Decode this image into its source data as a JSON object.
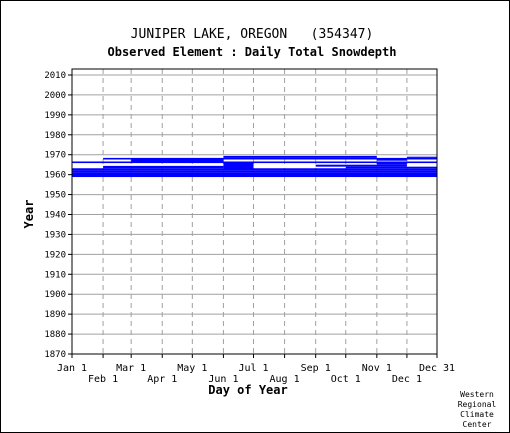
{
  "chart_data": {
    "type": "heatmap",
    "title": "JUNIPER LAKE, OREGON   (354347)",
    "subtitle": "Observed Element : Daily Total Snowdepth",
    "xlabel": "Day of Year",
    "ylabel": "Year",
    "ylim": [
      1870,
      2010
    ],
    "xlim_days": [
      1,
      365
    ],
    "x_ticks": [
      {
        "label": "Jan 1",
        "day": 1,
        "row": "top"
      },
      {
        "label": "Feb 1",
        "day": 32,
        "row": "bottom"
      },
      {
        "label": "Mar 1",
        "day": 60,
        "row": "top"
      },
      {
        "label": "Apr 1",
        "day": 91,
        "row": "bottom"
      },
      {
        "label": "May 1",
        "day": 121,
        "row": "top"
      },
      {
        "label": "Jun 1",
        "day": 152,
        "row": "bottom"
      },
      {
        "label": "Jul 1",
        "day": 182,
        "row": "top"
      },
      {
        "label": "Aug 1",
        "day": 213,
        "row": "bottom"
      },
      {
        "label": "Sep 1",
        "day": 244,
        "row": "top"
      },
      {
        "label": "Oct 1",
        "day": 274,
        "row": "bottom"
      },
      {
        "label": "Nov 1",
        "day": 305,
        "row": "top"
      },
      {
        "label": "Dec 1",
        "day": 335,
        "row": "bottom"
      },
      {
        "label": "Dec 31",
        "day": 365,
        "row": "top"
      }
    ],
    "y_ticks": [
      1870,
      1880,
      1890,
      1900,
      1910,
      1920,
      1930,
      1940,
      1950,
      1960,
      1970,
      1980,
      1990,
      2000,
      2010
    ],
    "data_color": "#0000ff",
    "grid": true,
    "series": [
      {
        "values": [
          {
            "year_start": 1958.8,
            "year_end": 1961.0,
            "day_start": 1,
            "day_end": 365
          },
          {
            "year_start": 1961.0,
            "year_end": 1962.0,
            "day_start": 1,
            "day_end": 365
          },
          {
            "year_start": 1962.0,
            "year_end": 1963.2,
            "day_start": 1,
            "day_end": 152
          },
          {
            "year_start": 1963.2,
            "year_end": 1964.4,
            "day_start": 32,
            "day_end": 152
          },
          {
            "year_start": 1962.0,
            "year_end": 1966.0,
            "day_start": 152,
            "day_end": 182
          },
          {
            "year_start": 1962.0,
            "year_end": 1963.2,
            "day_start": 182,
            "day_end": 365
          },
          {
            "year_start": 1963.2,
            "year_end": 1964.0,
            "day_start": 274,
            "day_end": 365
          },
          {
            "year_start": 1964.0,
            "year_end": 1965.0,
            "day_start": 244,
            "day_end": 335
          },
          {
            "year_start": 1965.0,
            "year_end": 1966.0,
            "day_start": 305,
            "day_end": 335
          },
          {
            "year_start": 1965.8,
            "year_end": 1966.6,
            "day_start": 1,
            "day_end": 365
          },
          {
            "year_start": 1966.6,
            "year_end": 1967.6,
            "day_start": 60,
            "day_end": 152
          },
          {
            "year_start": 1967.0,
            "year_end": 1967.6,
            "day_start": 305,
            "day_end": 335
          },
          {
            "year_start": 1967.6,
            "year_end": 1968.4,
            "day_start": 32,
            "day_end": 365
          },
          {
            "year_start": 1968.4,
            "year_end": 1969.4,
            "day_start": 152,
            "day_end": 305
          },
          {
            "year_start": 1968.4,
            "year_end": 1969.0,
            "day_start": 335,
            "day_end": 365
          }
        ]
      }
    ]
  },
  "credit": [
    "Western",
    "Regional",
    "Climate",
    "Center"
  ]
}
